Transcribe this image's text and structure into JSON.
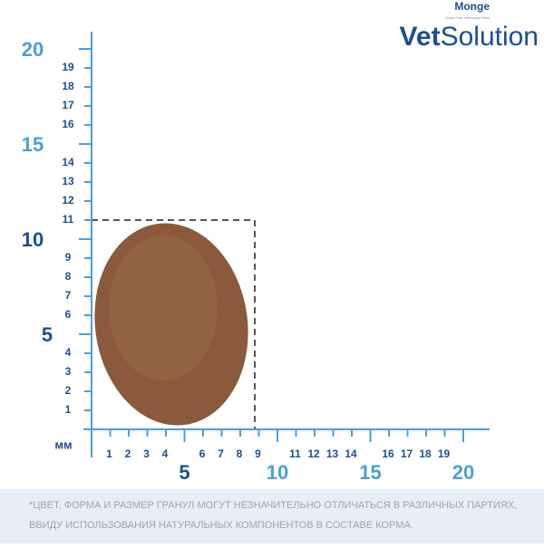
{
  "logo": {
    "brand": "Monge",
    "tagline": "Grain Free Veterinary Diets",
    "product_bold": "Vet",
    "product": "Solution"
  },
  "ruler": {
    "unit": "мм",
    "x_ticks": [
      1,
      2,
      3,
      4,
      5,
      6,
      7,
      8,
      9,
      10,
      11,
      12,
      13,
      14,
      15,
      16,
      17,
      18,
      19,
      20
    ],
    "y_ticks": [
      1,
      2,
      3,
      4,
      5,
      6,
      7,
      8,
      9,
      10,
      11,
      12,
      13,
      14,
      15,
      16,
      17,
      18,
      19,
      20
    ]
  },
  "footnote": [
    "*ЦВЕТ, ФОРМА И РАЗМЕР ГРАНУЛ МОГУТ НЕЗНАЧИТЕЛЬНО ОТЛИЧАТЬСЯ В РАЗЛИЧНЫХ ПАРТИЯХ,",
    "ВВИДУ ИСПОЛЬЗОВАНИЯ НАТУРАЛЬНЫХ КОМПОНЕНТОВ В СОСТАВЕ КОРМА."
  ]
}
